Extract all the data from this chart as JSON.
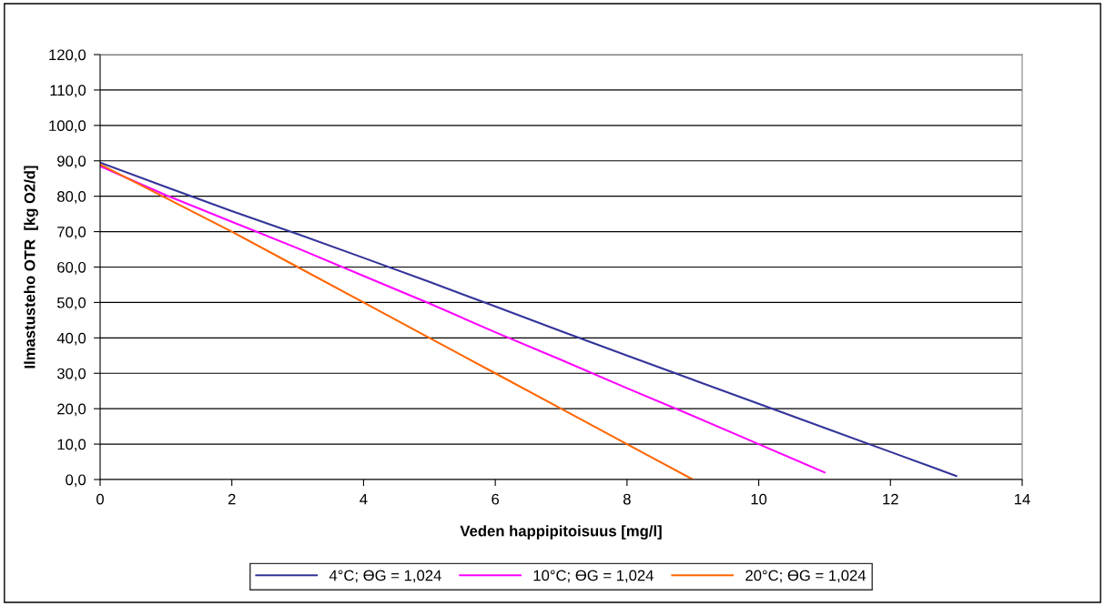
{
  "chart_data": {
    "type": "line",
    "xlabel": "Veden happipitoisuus [mg/l]",
    "ylabel": "Ilmastusteho OTR  [kg O2/d]",
    "series": [
      {
        "name": "4°C; ϴG = 1,024",
        "color": "#333399",
        "x": [
          0,
          1,
          2,
          3,
          4,
          5,
          6,
          7,
          8,
          9,
          10,
          11,
          12,
          13
        ],
        "values": [
          89.5,
          82.6,
          75.8,
          69.3,
          62.6,
          55.8,
          48.9,
          41.9,
          35.0,
          28.2,
          21.4,
          14.6,
          7.8,
          1.0
        ]
      },
      {
        "name": "10°C; ϴG = 1,024",
        "color": "#ff00ff",
        "x": [
          0,
          1,
          2,
          3,
          4,
          5,
          6,
          7,
          8,
          9,
          10,
          11
        ],
        "values": [
          88.5,
          80.3,
          72.8,
          65.3,
          57.5,
          49.7,
          41.6,
          33.8,
          25.8,
          18.0,
          10.0,
          2.0
        ]
      },
      {
        "name": "20°C; ϴG = 1,024",
        "color": "#ff6600",
        "x": [
          0,
          1,
          2,
          3,
          4,
          5,
          6,
          7,
          8,
          9
        ],
        "values": [
          89.0,
          79.5,
          70.0,
          60.0,
          50.0,
          40.0,
          30.0,
          20.0,
          10.0,
          0.0
        ]
      }
    ],
    "xlim": [
      0,
      14
    ],
    "xticks": [
      0,
      2,
      4,
      6,
      8,
      10,
      12,
      14
    ],
    "ylim": [
      0,
      120
    ],
    "yticks": [
      {
        "value": 0,
        "label": "0,0"
      },
      {
        "value": 10,
        "label": "10,0"
      },
      {
        "value": 20,
        "label": "20,0"
      },
      {
        "value": 30,
        "label": "30,0"
      },
      {
        "value": 40,
        "label": "40,0"
      },
      {
        "value": 50,
        "label": "50,0"
      },
      {
        "value": 60,
        "label": "60,0"
      },
      {
        "value": 70,
        "label": "70,0"
      },
      {
        "value": 80,
        "label": "80,0"
      },
      {
        "value": 90,
        "label": "90,0"
      },
      {
        "value": 100,
        "label": "100,0"
      },
      {
        "value": 110,
        "label": "110,0"
      },
      {
        "value": 120,
        "label": "120,0"
      }
    ],
    "grid": "y",
    "legend": "bottom",
    "marker": "none",
    "line_style": "solid"
  }
}
